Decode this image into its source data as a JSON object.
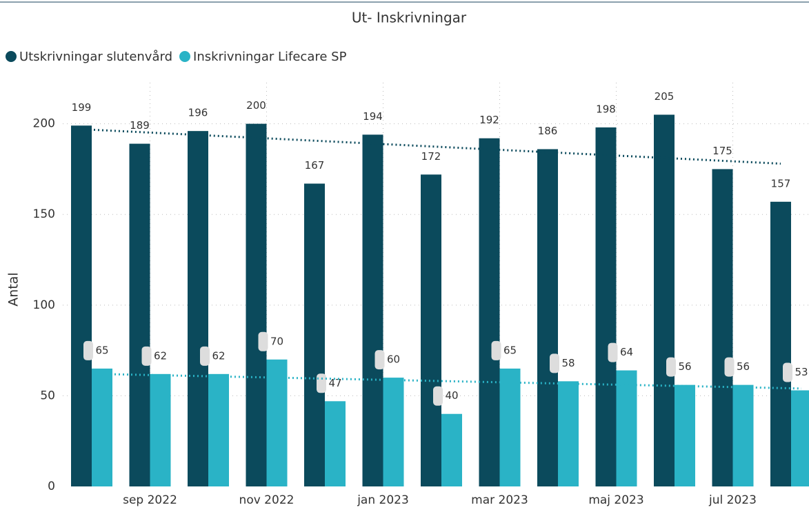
{
  "chart_data": {
    "type": "bar",
    "title": "Ut- Inskrivningar",
    "y_label": "Antal",
    "categories": [
      null,
      "sep 2022",
      null,
      "nov 2022",
      null,
      "jan 2023",
      null,
      "mar 2023",
      null,
      "maj 2023",
      null,
      "jul 2023",
      null
    ],
    "series": [
      {
        "name": "Utskrivningar slutenvård",
        "color": "#0b4a5c",
        "values": [
          199,
          189,
          196,
          200,
          167,
          194,
          172,
          192,
          186,
          198,
          205,
          175,
          157
        ],
        "trend": [
          197,
          178
        ]
      },
      {
        "name": "Inskrivningar Lifecare SP",
        "color": "#2ab3c6",
        "values": [
          65,
          62,
          62,
          70,
          47,
          60,
          40,
          65,
          58,
          64,
          56,
          56,
          53
        ],
        "trend": [
          62,
          54
        ]
      }
    ],
    "ylim": [
      0,
      220
    ],
    "yticks": [
      0,
      50,
      100,
      150,
      200
    ],
    "grid": true,
    "legend": "top-left"
  }
}
